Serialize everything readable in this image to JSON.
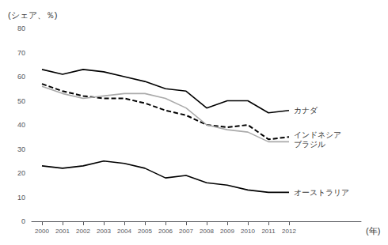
{
  "chart_data": {
    "type": "line",
    "xlabel": "(年)",
    "ylabel": "(シェア、％)",
    "x": [
      2000,
      2001,
      2002,
      2003,
      2004,
      2005,
      2006,
      2007,
      2008,
      2009,
      2010,
      2011,
      2012
    ],
    "xlim": [
      1999.5,
      2015.5
    ],
    "xticks": [
      2000,
      2001,
      2002,
      2003,
      2004,
      2005,
      2006,
      2007,
      2008,
      2009,
      2010,
      2011,
      2012
    ],
    "ylim": [
      0,
      80
    ],
    "yticks": [
      0,
      10,
      20,
      30,
      40,
      50,
      60,
      70,
      80
    ],
    "grid": false,
    "series": [
      {
        "name": "カナダ",
        "color": "#000000",
        "line_style": "solid",
        "values": [
          63,
          61,
          63,
          62,
          60,
          58,
          55,
          54,
          47,
          50,
          50,
          45,
          46
        ]
      },
      {
        "name": "インドネシア",
        "color": "#000000",
        "line_style": "dashed",
        "values": [
          57,
          54,
          52,
          51,
          51,
          49,
          46,
          44,
          40,
          39,
          40,
          34,
          35
        ]
      },
      {
        "name": "ブラジル",
        "color": "#aaaaaa",
        "line_style": "solid",
        "values": [
          56,
          53,
          51,
          52,
          53,
          53,
          51,
          47,
          40,
          38,
          37,
          33,
          33
        ]
      },
      {
        "name": "オーストラリア",
        "color": "#000000",
        "line_style": "solid",
        "values": [
          23,
          22,
          23,
          25,
          24,
          22,
          18,
          19,
          16,
          15,
          13,
          12,
          12
        ]
      }
    ]
  }
}
